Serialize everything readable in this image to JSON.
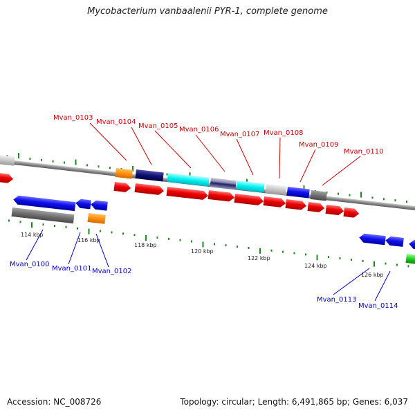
{
  "title": "Mycobacterium vanbaalenii PYR-1, complete genome",
  "footer": {
    "accession": "Accession: NC_008726",
    "summary": "Topology: circular; Length: 6,491,865 bp; Genes: 6,037"
  },
  "colors": {
    "forward_label": "#cc0000",
    "reverse_label": "#0000cc",
    "backbone": "#888888",
    "tick": "#1a8a1a"
  },
  "kbp_labels": [
    "114 kbp",
    "116 kbp",
    "118 kbp",
    "120 kbp",
    "122 kbp",
    "124 kbp",
    "126 kbp"
  ],
  "forward_gene_labels": [
    "Mvan_0103",
    "Mvan_0104",
    "Mvan_0105",
    "Mvan_0106",
    "Mvan_0107",
    "Mvan_0108",
    "Mvan_0109",
    "Mvan_0110"
  ],
  "reverse_gene_labels": [
    "Mvan_0100",
    "Mvan_0101",
    "Mvan_0102",
    "Mvan_0113",
    "Mvan_0114"
  ]
}
